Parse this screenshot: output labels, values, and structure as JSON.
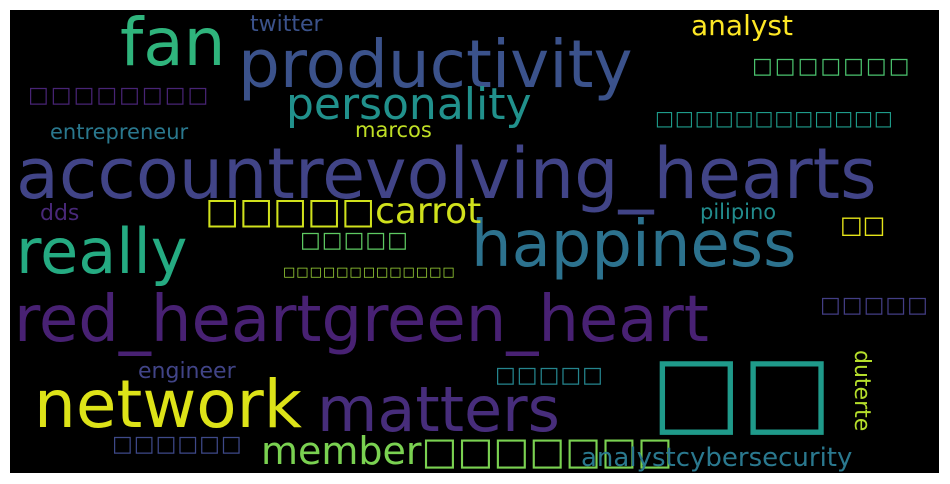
{
  "words": {
    "w_account": {
      "text": "accountrevolving_hearts",
      "color": "#414487"
    },
    "w_redheart": {
      "text": "red_heartgreen_heart",
      "color": "#482173"
    },
    "w_productivity": {
      "text": "productivity",
      "color": "#3b528b"
    },
    "w_happiness": {
      "text": "happiness",
      "color": "#2c728e"
    },
    "w_network": {
      "text": "network",
      "color": "#dde318"
    },
    "w_matters": {
      "text": "matters",
      "color": "#472d7b"
    },
    "w_really": {
      "text": "really",
      "color": "#25ab82"
    },
    "w_fan": {
      "text": "fan",
      "color": "#2fb47c"
    },
    "w_personality": {
      "text": "personality",
      "color": "#21918c"
    },
    "w_boxes2_big": {
      "text": "□□",
      "color": "#1f9a8a"
    },
    "w_member": {
      "text": "member□□□□□□□",
      "color": "#7ad151"
    },
    "w_carrot": {
      "text": "□□□□□carrot",
      "color": "#d0e11c"
    },
    "w_analyst": {
      "text": "analyst",
      "color": "#fde725"
    },
    "w_analystcyber": {
      "text": "analystcybersecurity",
      "color": "#2a788e"
    },
    "w_twitter": {
      "text": "twitter",
      "color": "#3b528b"
    },
    "w_entrepreneur": {
      "text": "entrepreneur",
      "color": "#2a788e"
    },
    "w_marcos": {
      "text": "marcos",
      "color": "#c0df25"
    },
    "w_dds": {
      "text": "dds",
      "color": "#482878"
    },
    "w_pilipino": {
      "text": "pilipino",
      "color": "#228c8d"
    },
    "w_engineer": {
      "text": "engineer",
      "color": "#414487"
    },
    "w_duterte": {
      "text": "duterte",
      "color": "#b5de2b"
    },
    "w_boxes_tl": {
      "text": "□□□□□□□□",
      "color": "#482475"
    },
    "w_boxes_tr": {
      "text": "□□□□□□□",
      "color": "#4ac16d"
    },
    "w_boxes_r": {
      "text": "□□□□□□□□□□□□",
      "color": "#1e9b8a"
    },
    "w_boxes_mid": {
      "text": "□□□□□",
      "color": "#5ec962"
    },
    "w_boxes_small": {
      "text": "□□□□□□□□□□□□□",
      "color": "#a0da39"
    },
    "w_boxes_2r": {
      "text": "□□",
      "color": "#e5e419"
    },
    "w_boxes_rr": {
      "text": "□□□□□",
      "color": "#433e85"
    },
    "w_boxes_center": {
      "text": "□□□□□",
      "color": "#25858e"
    },
    "w_boxes_bl": {
      "text": "□□□□□□",
      "color": "#3e4989"
    }
  }
}
